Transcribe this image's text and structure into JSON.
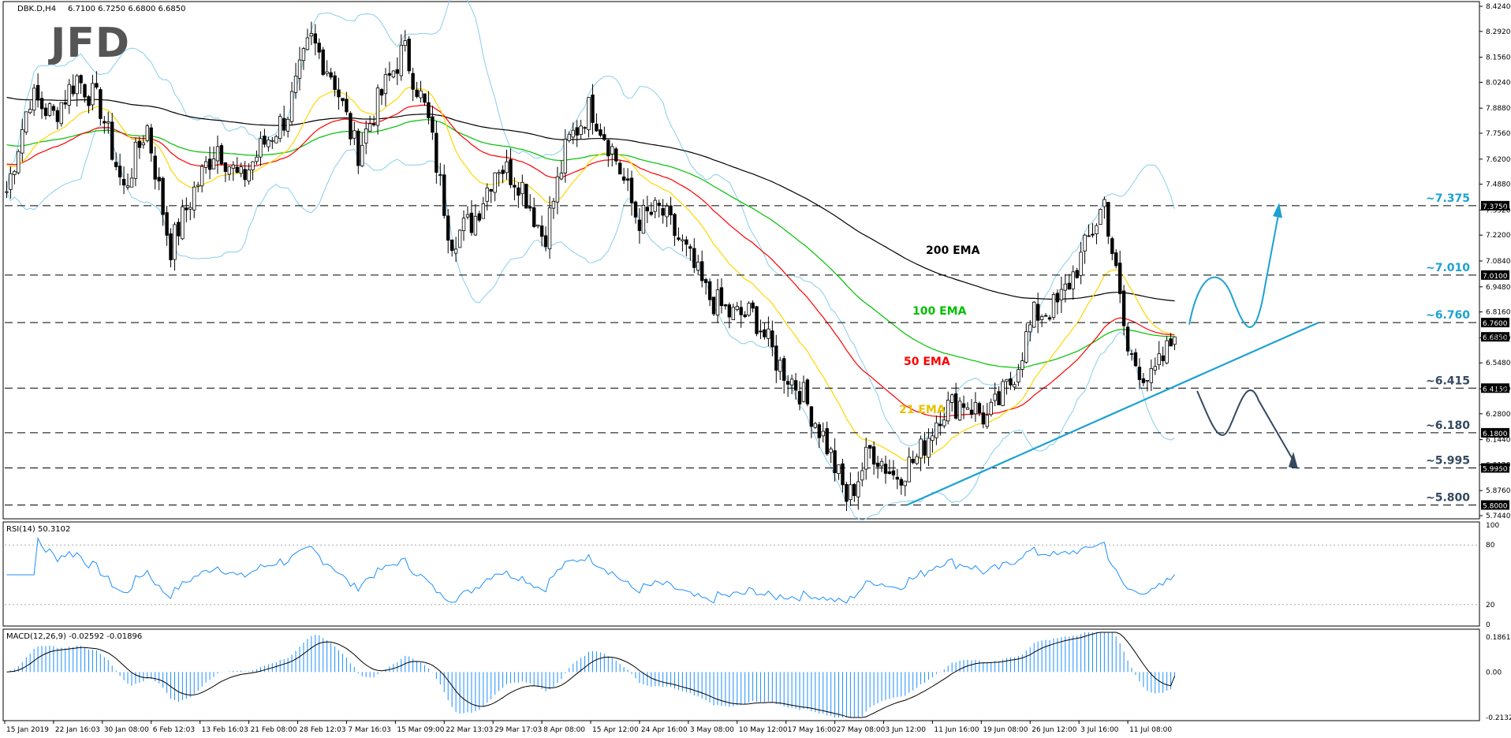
{
  "header": {
    "symbol": "DBK.D,H4",
    "ohlc": "6.7100 6.7250 6.6800 6.6850",
    "rsi_label": "RSI(14) 50.3102",
    "macd_label": "MACD(12,26,9) -0.02592 -0.01896"
  },
  "logo": "JFD",
  "colors": {
    "bull_candle": "#ffffff",
    "candle_wick": "#000000",
    "ema21": "#ffd700",
    "ema50": "#ff0000",
    "ema100": "#00c000",
    "ema200": "#000000",
    "bollinger": "#87ceeb",
    "trendline": "#1da1d2",
    "level_text": "#1da1d2",
    "up_arrow": "#1da1d2",
    "down_arrow": "#34495e",
    "rsi_line": "#1e90ff",
    "macd_hist": "#1e90ff",
    "macd_signal": "#000000"
  },
  "price_axis": {
    "ticks": [
      "8.4240",
      "8.2920",
      "8.1560",
      "8.0240",
      "7.8880",
      "7.7560",
      "7.6200",
      "7.4880",
      "7.3520",
      "7.2200",
      "7.0840",
      "6.9480",
      "6.8160",
      "6.6800",
      "6.5480",
      "6.4120",
      "6.2800",
      "6.1440",
      "6.0120",
      "5.8760",
      "5.7440"
    ],
    "current_price": "6.6850"
  },
  "levels": [
    {
      "value": 7.375,
      "label": "~7.375",
      "tag": "7.3750"
    },
    {
      "value": 7.01,
      "label": "~7.010",
      "tag": "7.0100"
    },
    {
      "value": 6.76,
      "label": "~6.760",
      "tag": "6.7600"
    },
    {
      "value": 6.415,
      "label": "~6.415",
      "tag": "6.4150"
    },
    {
      "value": 6.18,
      "label": "~6.180",
      "tag": "6.1800"
    },
    {
      "value": 5.995,
      "label": "~5.995",
      "tag": "5.9950"
    },
    {
      "value": 5.8,
      "label": "~5.800",
      "tag": "5.8000"
    }
  ],
  "ema_labels": [
    {
      "text": "200 EMA",
      "color": "#000000"
    },
    {
      "text": "100 EMA",
      "color": "#00c000"
    },
    {
      "text": "50 EMA",
      "color": "#ff0000"
    },
    {
      "text": "21 EMA",
      "color": "#ffd700"
    }
  ],
  "rsi_axis": {
    "ticks": [
      "100",
      "80",
      "20",
      "0"
    ]
  },
  "macd_axis": {
    "ticks": [
      "0.18615",
      "0.00",
      "-0.2132"
    ]
  },
  "time_axis": [
    "15 Jan 2019",
    "22 Jan 16:03",
    "30 Jan 08:00",
    "6 Feb 12:03",
    "13 Feb 16:03",
    "21 Feb 08:00",
    "28 Feb 12:03",
    "7 Mar 16:03",
    "15 Mar 09:00",
    "22 Mar 13:03",
    "29 Mar 17:03",
    "8 Apr 08:00",
    "15 Apr 12:00",
    "24 Apr 16:00",
    "3 May 08:00",
    "10 May 12:00",
    "17 May 16:00",
    "27 May 08:00",
    "3 Jun 12:00",
    "11 Jun 16:00",
    "19 Jun 08:00",
    "26 Jun 12:00",
    "3 Jul 16:00",
    "11 Jul 08:00"
  ],
  "chart_data": {
    "type": "candlestick",
    "symbol": "DBK.D",
    "timeframe": "H4",
    "ylim": [
      5.744,
      8.424
    ],
    "last_close": 6.685,
    "close_path": [
      {
        "x": "15 Jan 2019",
        "y": 7.45
      },
      {
        "x": "17 Jan",
        "y": 7.95
      },
      {
        "x": "22 Jan 16:03",
        "y": 7.85
      },
      {
        "x": "25 Jan",
        "y": 8.05
      },
      {
        "x": "30 Jan 08:00",
        "y": 7.9
      },
      {
        "x": "1 Feb",
        "y": 7.45
      },
      {
        "x": "4 Feb",
        "y": 7.8
      },
      {
        "x": "6 Feb 12:03",
        "y": 7.15
      },
      {
        "x": "8 Feb",
        "y": 7.45
      },
      {
        "x": "13 Feb 16:03",
        "y": 7.7
      },
      {
        "x": "18 Feb",
        "y": 7.5
      },
      {
        "x": "21 Feb 08:00",
        "y": 7.7
      },
      {
        "x": "25 Feb",
        "y": 7.85
      },
      {
        "x": "28 Feb 12:03",
        "y": 8.25
      },
      {
        "x": "4 Mar",
        "y": 8.05
      },
      {
        "x": "7 Mar 16:03",
        "y": 7.65
      },
      {
        "x": "11 Mar",
        "y": 7.95
      },
      {
        "x": "15 Mar 09:00",
        "y": 8.2
      },
      {
        "x": "18 Mar",
        "y": 7.85
      },
      {
        "x": "22 Mar 13:03",
        "y": 7.2
      },
      {
        "x": "26 Mar",
        "y": 7.3
      },
      {
        "x": "29 Mar 17:03",
        "y": 7.6
      },
      {
        "x": "3 Apr",
        "y": 7.5
      },
      {
        "x": "8 Apr 08:00",
        "y": 7.2
      },
      {
        "x": "10 Apr",
        "y": 7.7
      },
      {
        "x": "15 Apr 12:00",
        "y": 7.9
      },
      {
        "x": "19 Apr",
        "y": 7.65
      },
      {
        "x": "24 Apr 16:00",
        "y": 7.3
      },
      {
        "x": "29 Apr",
        "y": 7.35
      },
      {
        "x": "3 May 08:00",
        "y": 7.15
      },
      {
        "x": "7 May",
        "y": 6.9
      },
      {
        "x": "10 May 12:00",
        "y": 6.8
      },
      {
        "x": "14 May",
        "y": 6.8
      },
      {
        "x": "17 May 16:00",
        "y": 6.55
      },
      {
        "x": "22 May",
        "y": 6.4
      },
      {
        "x": "27 May 08:00",
        "y": 6.15
      },
      {
        "x": "30 May",
        "y": 5.82
      },
      {
        "x": "3 Jun 12:00",
        "y": 6.1
      },
      {
        "x": "6 Jun",
        "y": 5.95
      },
      {
        "x": "11 Jun 16:00",
        "y": 6.05
      },
      {
        "x": "14 Jun",
        "y": 6.3
      },
      {
        "x": "19 Jun 08:00",
        "y": 6.35
      },
      {
        "x": "21 Jun",
        "y": 6.25
      },
      {
        "x": "24 Jun",
        "y": 6.45
      },
      {
        "x": "26 Jun 12:00",
        "y": 6.8
      },
      {
        "x": "28 Jun",
        "y": 6.85
      },
      {
        "x": "2 Jul",
        "y": 7.1
      },
      {
        "x": "3 Jul 16:00",
        "y": 7.4
      },
      {
        "x": "5 Jul",
        "y": 6.6
      },
      {
        "x": "9 Jul",
        "y": 6.45
      },
      {
        "x": "11 Jul 08:00",
        "y": 6.685
      }
    ],
    "indicators": [
      "21 EMA",
      "50 EMA",
      "100 EMA",
      "200 EMA",
      "Bollinger Bands"
    ],
    "rsi": {
      "period": 14,
      "last": 50.3102,
      "levels": [
        80,
        20
      ],
      "ylim": [
        0,
        100
      ]
    },
    "macd": {
      "params": "12,26,9",
      "last_macd": -0.02592,
      "last_signal": -0.01896,
      "ylim": [
        -0.2132,
        0.18615
      ]
    },
    "annotations": [
      "uptrend line from ~5.800 low",
      "bullish path: ~6.760 → ~7.010 → ~7.375",
      "bearish path: ~6.415 → ~6.180 → ~5.995"
    ]
  }
}
